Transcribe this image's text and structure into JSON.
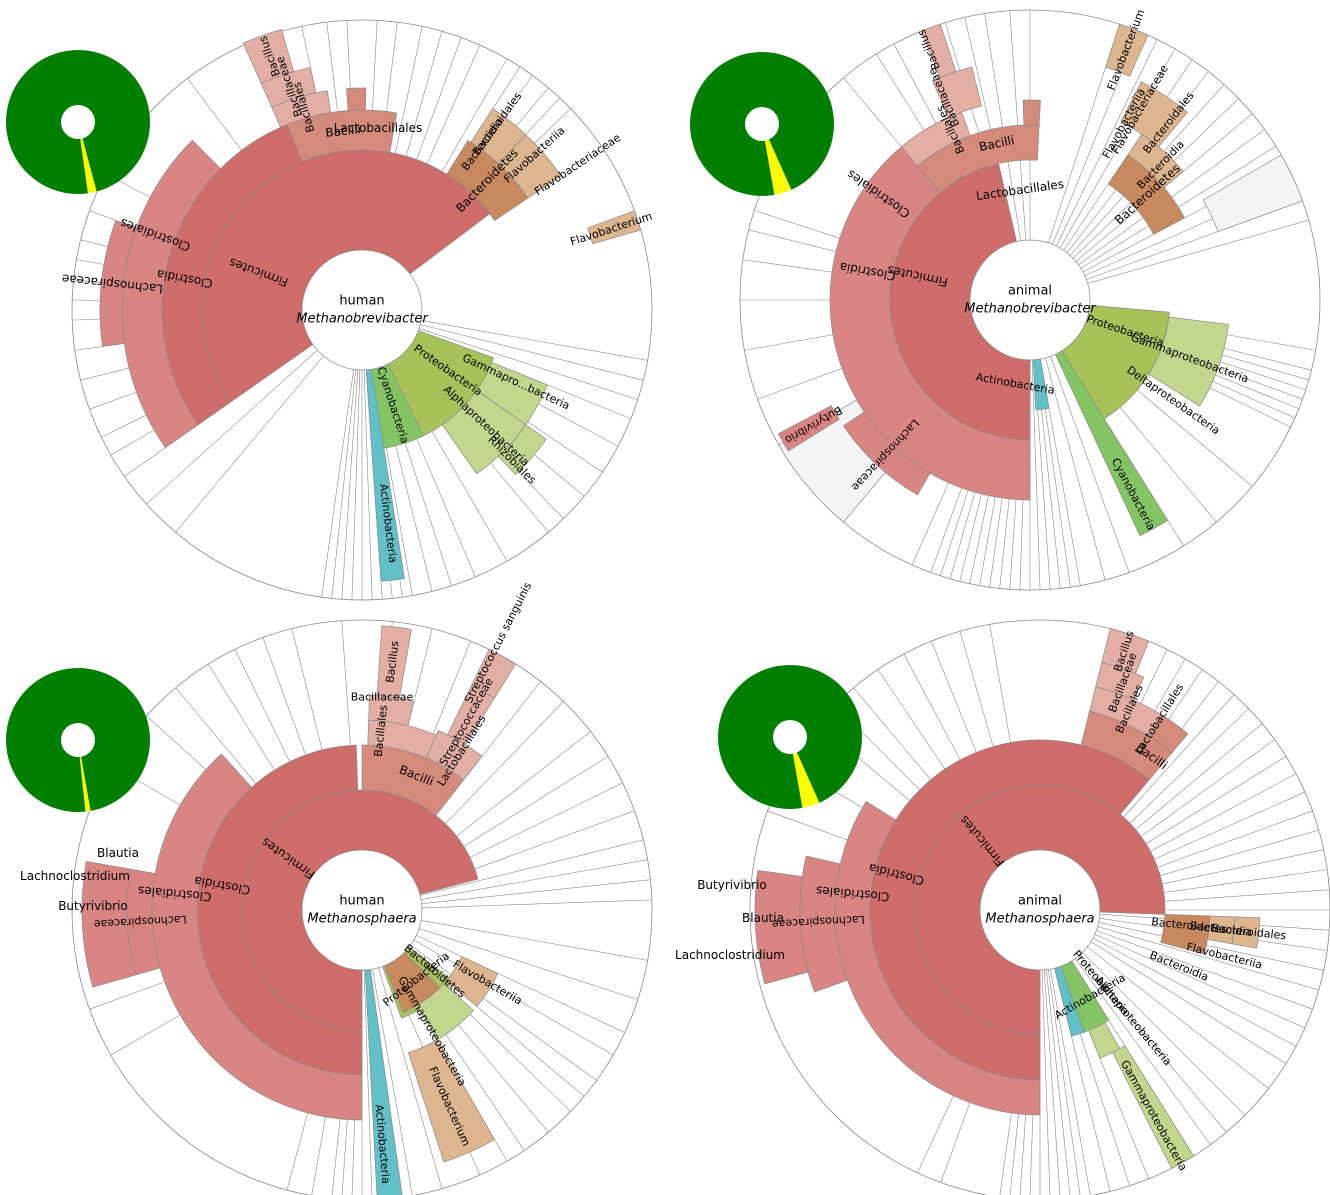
{
  "colors": {
    "firmicutes": "#cf6d6b",
    "firmicutes_light": "#d98584",
    "bacilli": "#d58b7c",
    "bacilli_light": "#e3aea4",
    "bacteroidetes": "#c9895e",
    "bacteroidetes_light": "#ddb58f",
    "proteobacteria": "#a8c25a",
    "proteobacteria_light": "#c2d68e",
    "cyanobacteria": "#84c464",
    "actinobacteria": "#62c0c9",
    "thumb_green": "#007f00",
    "thumb_yellow": "#ffff00",
    "grey_wedge": "#f4f4f4",
    "stroke": "#8a8a8a"
  },
  "panels": [
    {
      "id": "human-methanobrevibacter",
      "center_line1": "human",
      "center_line2": "Methanobrevibacter",
      "labels": {
        "firmicutes": "Firmicutes",
        "clostridia": "Clostridia",
        "clostridiales": "Clostridiales",
        "lachnospiraceae": "Lachnospiraceae",
        "bacilli": "Bacilli",
        "bacillales": "Bacillales",
        "bacillaceae": "Bacillaceae",
        "bacillus": "Bacillus",
        "lactobacillales": "Lactobacillales",
        "bacteroidetes": "Bacteroidetes",
        "bacteroidia": "Bacteroidia",
        "bacteroidales": "Bacteroidales",
        "flavobacteriia": "Flavobacteriia",
        "flavobacteriaceae": "Flavobacteriaceae",
        "flavobacterium": "Flavobacterium",
        "proteobacteria": "Proteobacteria",
        "gammaproteo": "Gammapro...bacteria",
        "alphaproteo": "Alphaproteobacteria",
        "rhizobiales": "Rhizobiales",
        "cyanobacteria": "Cyanobacteria",
        "actinobacteria": "Actinobacteria"
      }
    },
    {
      "id": "animal-methanobrevibacter",
      "center_line1": "animal",
      "center_line2": "Methanobrevibacter",
      "labels": {
        "firmicutes": "Firmicutes",
        "clostridia": "Clostridia",
        "clostridiales": "Clostridiales",
        "lachnospiraceae": "Lachnospiraceae",
        "butyrivibrio": "Butyrivibrio",
        "bacilli": "Bacilli",
        "bacillales": "Bacillales",
        "bacillaceae": "Bacillaceae",
        "bacillus": "Bacillus",
        "lactobacillales": "Lactobacillales",
        "bacteroidetes": "Bacteroidetes",
        "bacteroidia": "Bacteroidia",
        "bacteroidales": "Bacteroidales",
        "flavobacteriia": "Flavobacteriia",
        "flavobacteriaceae": "Flavobacteriaceae",
        "flavobacterium": "Flavobacterium",
        "proteobacteria": "Proteobacteria",
        "gammaproteo": "Gammaproteobacteria",
        "deltaproteo": "Deltaproteobacteria",
        "actinobacteria": "Actinobacteria",
        "cyanobacteria": "Cyanobacteria"
      }
    },
    {
      "id": "human-methanosphaera",
      "center_line1": "human",
      "center_line2": "Methanosphaera",
      "labels": {
        "firmicutes": "Firmicutes",
        "clostridia": "Clostridia",
        "clostridiales": "Clostridiales",
        "lachnospiraceae": "Lachnospiraceae",
        "blautia": "Blautia",
        "lachnoclostridium": "Lachnoclostridium",
        "butyrivibrio": "Butyrivibrio",
        "bacilli": "Bacilli",
        "bacillales": "Bacillales",
        "bacillaceae": "Bacillaceae",
        "bacillus": "Bacillus",
        "lactobacillales": "Lactobacillales",
        "streptococcaceae": "Streptococcaceae",
        "streptococcus": "Streptococcus sanguinis",
        "proteobacteria": "Proteobacteria",
        "gammaproteo": "Gammaproteobacteria",
        "bacteroidetes": "Bacteroidetes",
        "flavobacteriia": "Flavobacteriia",
        "flavobacterium": "Flavobacterium",
        "actinobacteria": "Actinobacteria"
      }
    },
    {
      "id": "animal-methanosphaera",
      "center_line1": "animal",
      "center_line2": "Methanosphaera",
      "labels": {
        "firmicutes": "Firmicutes",
        "clostridia": "Clostridia",
        "clostridiales": "Clostridiales",
        "lachnospiraceae": "Lachnospiraceae",
        "butyrivibrio": "Butyrivibrio",
        "blautia": "Blautia",
        "lachnoclostridium": "Lachnoclostridium",
        "bacilli": "Bacilli",
        "bacillales": "Bacillales",
        "bacillaceae": "Bacillaceae",
        "bacillus": "Bacillus",
        "lactobacillales": "Lactobacillales",
        "bacteroidetes": "Bacteroidetes",
        "bacteroidia": "Bacteroidia",
        "bacteroidales": "Bacteroidales",
        "flavobacteriia": "Flavobacteriia",
        "bacteroidia2": "Bacteroidia",
        "proteobacteria": "Proteobacteria",
        "actinobacteria": "Actinobacteria",
        "alphaproteo": "Alphaproteobacteria",
        "gammaproteo": "Gammaproteobacteria"
      }
    }
  ]
}
